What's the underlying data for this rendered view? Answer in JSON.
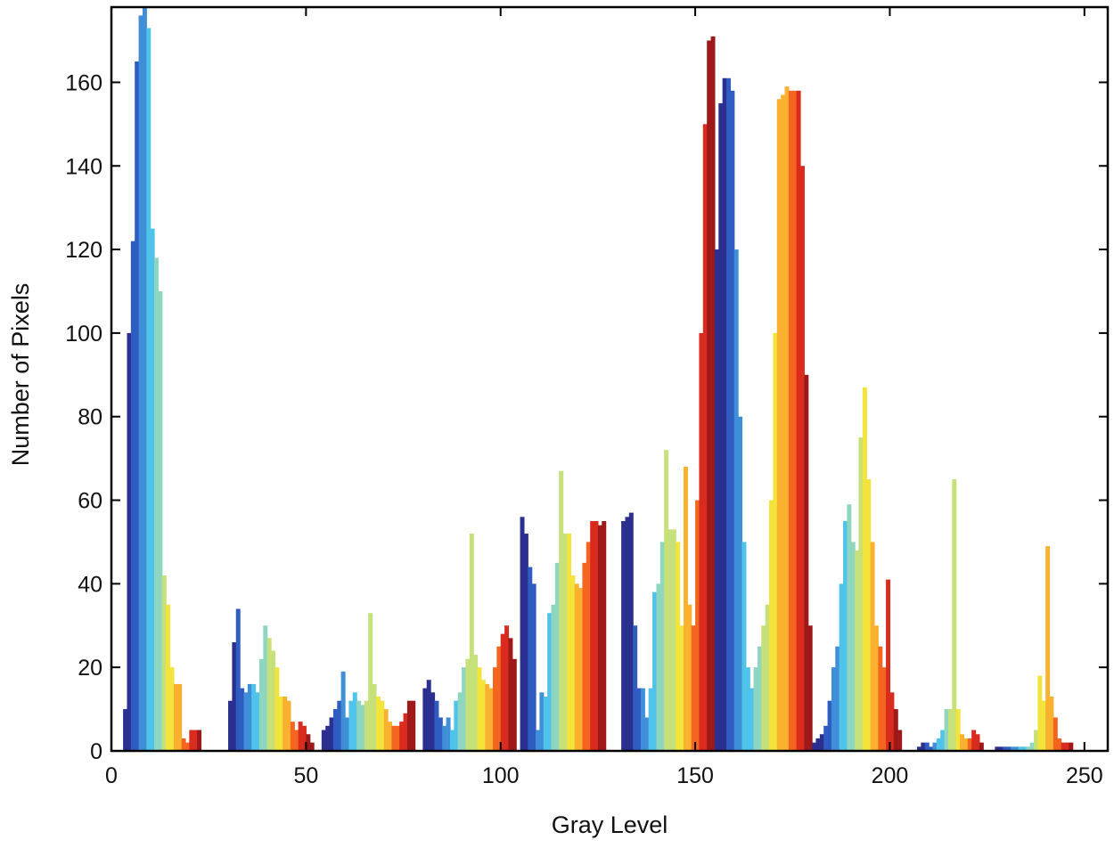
{
  "chart_data": {
    "type": "bar",
    "title": "",
    "xlabel": "Gray Level",
    "ylabel": "Number of Pixels",
    "xlim": [
      0,
      256
    ],
    "ylim": [
      0,
      178
    ],
    "xticks": [
      0,
      50,
      100,
      150,
      200,
      250
    ],
    "yticks": [
      0,
      20,
      40,
      60,
      80,
      100,
      120,
      140,
      160
    ],
    "grid": false,
    "colormap": [
      "#2b2f8f",
      "#2f5cc0",
      "#3f8fd8",
      "#4fc3ea",
      "#8fd6c0",
      "#c6e07a",
      "#f2e43a",
      "#fbb130",
      "#f4661f",
      "#d92b1e",
      "#9e1a1a"
    ],
    "groups": [
      {
        "x": 3,
        "values": [
          10,
          100,
          122,
          165,
          176,
          178,
          173,
          125,
          118,
          110,
          42,
          35,
          20,
          16,
          16,
          3,
          2,
          5,
          5,
          5
        ]
      },
      {
        "x": 30,
        "values": [
          12,
          26,
          34,
          15,
          14,
          16,
          16,
          14,
          22,
          30,
          27,
          24,
          20,
          13,
          13,
          12,
          7,
          5,
          7,
          6,
          4,
          2
        ]
      },
      {
        "x": 54,
        "values": [
          5,
          6,
          8,
          10,
          12,
          19,
          8,
          12,
          14,
          12,
          11,
          12,
          33,
          16,
          13,
          12,
          10,
          7,
          6,
          6,
          7,
          9,
          12,
          12
        ]
      },
      {
        "x": 80,
        "values": [
          15,
          17,
          14,
          12,
          8,
          6,
          8,
          5,
          12,
          14,
          20,
          22,
          52,
          23,
          20,
          17,
          16,
          15,
          20,
          25,
          28,
          30,
          27,
          22
        ]
      },
      {
        "x": 105,
        "values": [
          56,
          52,
          44,
          40,
          5,
          14,
          13,
          33,
          35,
          45,
          67,
          52,
          52,
          42,
          40,
          39,
          45,
          50,
          55,
          55,
          54,
          55
        ]
      },
      {
        "x": 131,
        "values": [
          55,
          56,
          57,
          30,
          15,
          15,
          8,
          15,
          38,
          40,
          50,
          72,
          53,
          53,
          50,
          30,
          68,
          35,
          30,
          60,
          100,
          150,
          170,
          171
        ]
      },
      {
        "x": 155,
        "values": [
          120,
          155,
          161,
          161,
          158,
          120,
          80,
          50,
          20,
          15,
          20,
          25,
          30,
          35,
          60,
          100,
          156,
          157,
          159,
          158,
          158,
          158,
          140,
          90,
          30
        ]
      },
      {
        "x": 180,
        "values": [
          2,
          3,
          4,
          6,
          12,
          20,
          25,
          40,
          55,
          59,
          50,
          48,
          75,
          87,
          65,
          50,
          30,
          25,
          20,
          41,
          14,
          10,
          5
        ]
      },
      {
        "x": 207,
        "values": [
          1,
          2,
          2,
          1,
          2,
          3,
          5,
          10,
          10,
          65,
          10,
          4,
          3,
          3,
          5,
          4,
          2
        ]
      },
      {
        "x": 227,
        "values": [
          1,
          1,
          1,
          1,
          1,
          1,
          1,
          1,
          1,
          2,
          5,
          18,
          12,
          49,
          13,
          8,
          3,
          2,
          2,
          2
        ]
      }
    ]
  }
}
